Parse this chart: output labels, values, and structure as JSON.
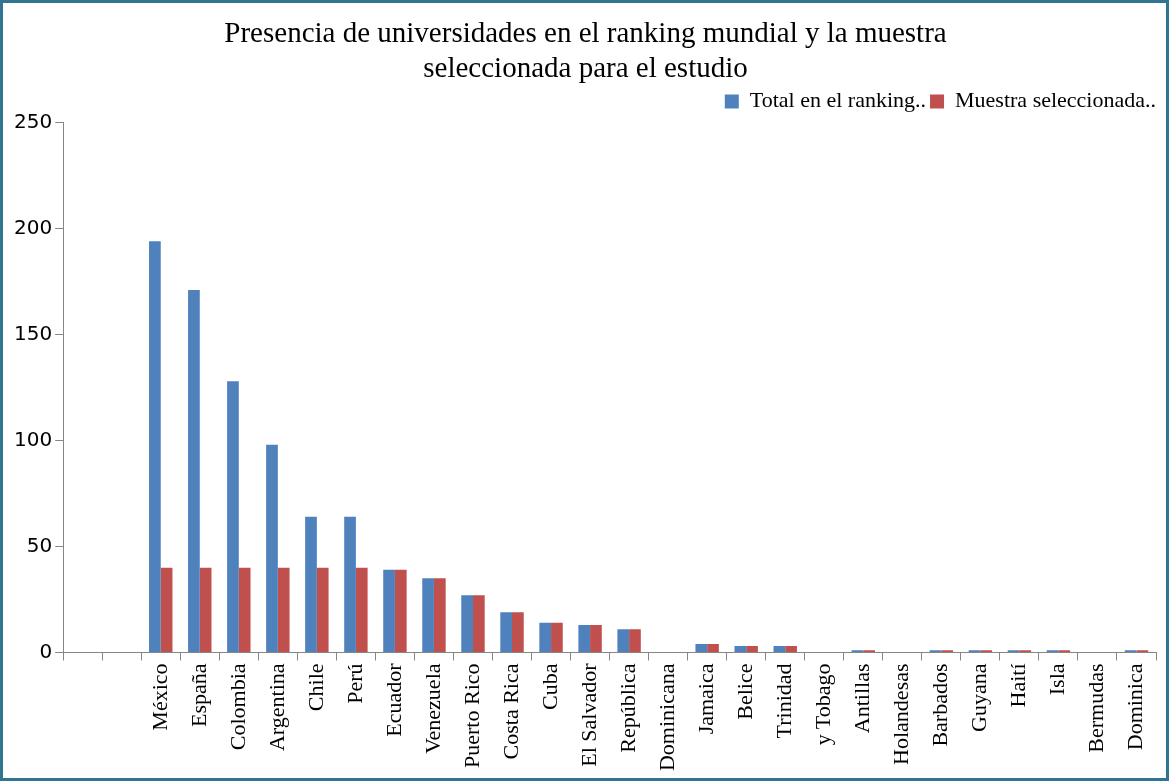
{
  "chart_data": {
    "type": "bar",
    "title": "Presencia de universidades en el ranking mundial y la muestra seleccionada para el estudio",
    "categories": [
      null,
      null,
      "México",
      "España",
      "Colombia",
      "Argentina",
      "Chile",
      "Perú",
      "Ecuador",
      "Venezuela",
      "Puerto Rico",
      "Costa Rica",
      "Cuba",
      "El Salvador",
      "República",
      "Dominicana",
      "Jamaica",
      "Belice",
      "Trinidad",
      "y Tobago",
      "Antillas",
      "Holandesas",
      "Barbados",
      "Guyana",
      "Haití",
      "Isla",
      "Bermudas",
      "Dominica"
    ],
    "series": [
      {
        "name": "Total en el ranking..",
        "color": "#4f81bd",
        "values": [
          null,
          null,
          194,
          171,
          128,
          98,
          64,
          64,
          39,
          35,
          27,
          19,
          14,
          13,
          11,
          null,
          4,
          3,
          3,
          null,
          1,
          null,
          1,
          1,
          1,
          1,
          null,
          1
        ]
      },
      {
        "name": "Muestra seleccionada..",
        "color": "#c0504d",
        "values": [
          null,
          null,
          40,
          40,
          40,
          40,
          40,
          40,
          39,
          35,
          27,
          19,
          14,
          13,
          11,
          null,
          4,
          3,
          3,
          null,
          1,
          null,
          1,
          1,
          1,
          1,
          null,
          1
        ]
      }
    ],
    "ylim": [
      0,
      250
    ],
    "yticks": [
      0,
      50,
      100,
      150,
      200,
      250
    ],
    "grid": false,
    "legend": "top right"
  }
}
